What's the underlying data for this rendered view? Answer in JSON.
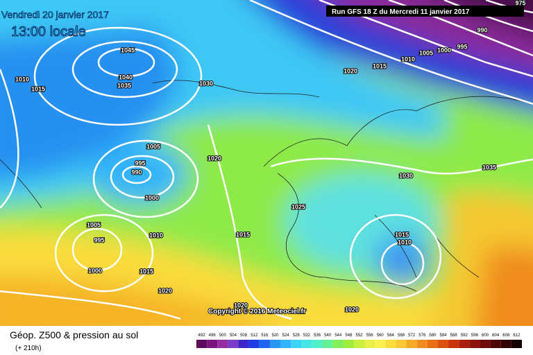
{
  "header": {
    "date": "Vendredi 20 janvier 2017",
    "time": "13:00 locale",
    "run": "Run GFS 18 Z du Mercredi 11 janvier 2017"
  },
  "copyright": "Copyright © 2016 Meteociel.fr",
  "footer": {
    "title": "Géop. Z500 & pression au sol",
    "lead": "(+ 210h)"
  },
  "isobar_labels": [
    975,
    990,
    995,
    1000,
    1005,
    1010,
    1015,
    1020,
    1045,
    1040,
    1035,
    1030,
    1010,
    1015,
    1005,
    995,
    990,
    1000,
    1020,
    1030,
    1035,
    1025,
    1005,
    995,
    1000,
    1010,
    1015,
    1015,
    1010,
    1015,
    1020,
    1020,
    1020
  ],
  "legend": {
    "labels": [
      492,
      496,
      500,
      504,
      508,
      512,
      516,
      520,
      524,
      528,
      532,
      536,
      540,
      544,
      548,
      552,
      556,
      560,
      564,
      568,
      572,
      576,
      580,
      584,
      588,
      592,
      596,
      600,
      604,
      608,
      612
    ],
    "colors": [
      "#5c0a5c",
      "#7a1480",
      "#962ca0",
      "#7a3cc8",
      "#3c28c8",
      "#1e3ce6",
      "#1e64f0",
      "#2896f5",
      "#32b4fa",
      "#3cd2fa",
      "#46e6e6",
      "#50f0c8",
      "#64f096",
      "#82ee5a",
      "#a0ec3c",
      "#c8f03c",
      "#e6f046",
      "#faf050",
      "#fadc3c",
      "#fac832",
      "#f5aa28",
      "#f08c1e",
      "#e66e14",
      "#dc500f",
      "#c8320a",
      "#aa1e0a",
      "#8c140a",
      "#6e0a0a",
      "#500505",
      "#320303",
      "#140000"
    ]
  }
}
